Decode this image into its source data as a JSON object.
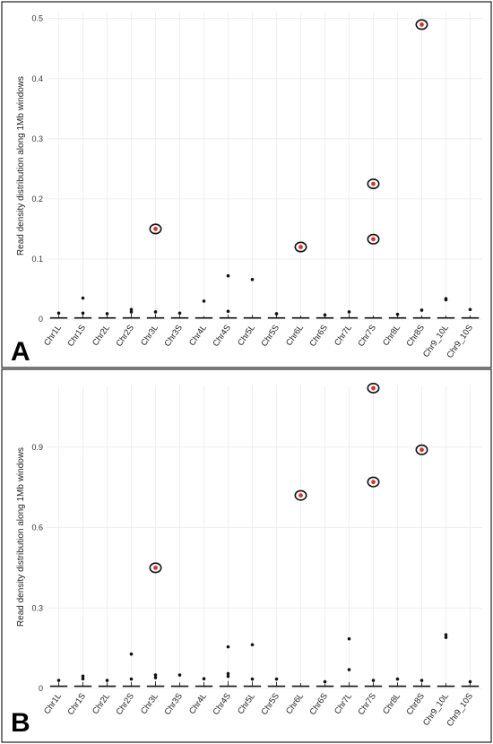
{
  "chart_data": [
    {
      "type": "box",
      "panel_label": "A",
      "ylabel": "Read density distribution along 1Mb windows",
      "ylim": [
        0,
        0.51
      ],
      "yticks": [
        0,
        0.1,
        0.2,
        0.3,
        0.4,
        0.5
      ],
      "ytick_labels": [
        "0",
        "0.1",
        "0.2",
        "0.3",
        "0.4",
        "0.5"
      ],
      "grid": true,
      "categories": [
        "Chr1L",
        "Chr1S",
        "Chr2L",
        "Chr2S",
        "Chr3L",
        "Chr3S",
        "Chr4L",
        "Chr4S",
        "Chr5L",
        "Chr5S",
        "Chr6L",
        "Chr6S",
        "Chr7L",
        "Chr7S",
        "Chr8L",
        "Chr8S",
        "Chr9_10L",
        "Chr9_10S"
      ],
      "medians": [
        0.002,
        0.002,
        0.002,
        0.002,
        0.002,
        0.002,
        0.002,
        0.002,
        0.002,
        0.002,
        0.002,
        0.002,
        0.002,
        0.002,
        0.002,
        0.002,
        0.002,
        0.002
      ],
      "whisker_high": [
        0.007,
        0.008,
        0.006,
        0.009,
        0.008,
        0.007,
        0.005,
        0.007,
        0.007,
        0.007,
        0.006,
        0.006,
        0.008,
        0.006,
        0.006,
        0.006,
        0.006,
        0.006
      ],
      "outliers": [
        [
          0.01
        ],
        [
          0.01,
          0.035
        ],
        [
          0.009
        ],
        [
          0.012,
          0.016
        ],
        [
          0.012
        ],
        [
          0.01
        ],
        [
          0.03
        ],
        [
          0.013,
          0.072
        ],
        [
          0.066
        ],
        [
          0.009
        ],
        [],
        [
          0.007
        ],
        [
          0.012
        ],
        [],
        [
          0.008
        ],
        [
          0.015
        ],
        [
          0.032,
          0.034
        ],
        [
          0.016
        ]
      ],
      "highlighted": [
        {
          "category": "Chr3L",
          "value": 0.15
        },
        {
          "category": "Chr6L",
          "value": 0.12
        },
        {
          "category": "Chr7S",
          "value": 0.133
        },
        {
          "category": "Chr7S",
          "value": 0.225
        },
        {
          "category": "Chr8S",
          "value": 0.49
        }
      ]
    },
    {
      "type": "box",
      "panel_label": "B",
      "ylabel": "Read density distribution along 1Mb windows",
      "ylim": [
        0,
        1.13
      ],
      "yticks": [
        0,
        0.3,
        0.6,
        0.9
      ],
      "ytick_labels": [
        "0",
        "0.3",
        "0.6",
        "0.9"
      ],
      "grid": true,
      "categories": [
        "Chr1L",
        "Chr1S",
        "Chr2L",
        "Chr2S",
        "Chr3L",
        "Chr3S",
        "Chr4L",
        "Chr4S",
        "Chr5L",
        "Chr5S",
        "Chr6L",
        "Chr6S",
        "Chr7L",
        "Chr7S",
        "Chr8L",
        "Chr8S",
        "Chr9_10L",
        "Chr9_10S"
      ],
      "medians": [
        0.008,
        0.008,
        0.008,
        0.008,
        0.008,
        0.008,
        0.008,
        0.008,
        0.008,
        0.008,
        0.008,
        0.008,
        0.008,
        0.008,
        0.008,
        0.008,
        0.008,
        0.008
      ],
      "whisker_high": [
        0.022,
        0.024,
        0.022,
        0.024,
        0.026,
        0.022,
        0.024,
        0.028,
        0.026,
        0.024,
        0.02,
        0.018,
        0.024,
        0.022,
        0.022,
        0.022,
        0.02,
        0.02
      ],
      "outliers": [
        [
          0.03
        ],
        [
          0.036,
          0.046
        ],
        [
          0.03
        ],
        [
          0.035,
          0.128
        ],
        [
          0.04,
          0.05
        ],
        [
          0.05
        ],
        [
          0.036
        ],
        [
          0.045,
          0.055,
          0.155
        ],
        [
          0.035,
          0.163
        ],
        [
          0.035
        ],
        [],
        [
          0.025
        ],
        [
          0.07,
          0.185
        ],
        [
          0.03
        ],
        [
          0.035
        ],
        [
          0.03
        ],
        [
          0.19,
          0.2
        ],
        [
          0.025
        ]
      ],
      "highlighted": [
        {
          "category": "Chr3L",
          "value": 0.45
        },
        {
          "category": "Chr6L",
          "value": 0.72
        },
        {
          "category": "Chr7S",
          "value": 0.77
        },
        {
          "category": "Chr7S",
          "value": 1.12
        },
        {
          "category": "Chr8S",
          "value": 0.89
        }
      ]
    }
  ]
}
